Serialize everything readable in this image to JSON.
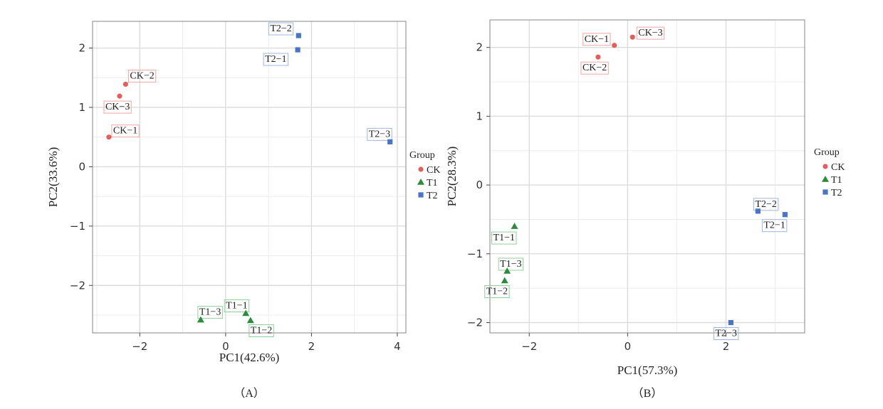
{
  "groups": [
    {
      "name": "CK",
      "color": "#e06060",
      "shape": "circle",
      "label_border": "#f0a6a6"
    },
    {
      "name": "T1",
      "color": "#2e8b3e",
      "shape": "triangle",
      "label_border": "#8fd09a"
    },
    {
      "name": "T2",
      "color": "#4a74c4",
      "shape": "square",
      "label_border": "#9fb6e2"
    }
  ],
  "chart_data": [
    {
      "type": "scatter",
      "panel_label": "（A）",
      "xlabel": "PC1(42.6%)",
      "ylabel": "PC2(33.6%)",
      "xlim": [
        -3.1,
        4.2
      ],
      "ylim": [
        -2.8,
        2.45
      ],
      "xticks": [
        -2,
        0,
        2,
        4
      ],
      "yticks": [
        -2,
        -1,
        0,
        1,
        2
      ],
      "grid": true,
      "legend": {
        "title": "Group",
        "position": "right",
        "entries": [
          "CK",
          "T1",
          "T2"
        ]
      },
      "points": [
        {
          "label": "CK-1",
          "group": "CK",
          "x": -2.72,
          "y": 0.5
        },
        {
          "label": "CK-2",
          "group": "CK",
          "x": -2.33,
          "y": 1.39
        },
        {
          "label": "CK-3",
          "group": "CK",
          "x": -2.47,
          "y": 1.19
        },
        {
          "label": "T1-1",
          "group": "T1",
          "x": 0.47,
          "y": -2.47
        },
        {
          "label": "T1-2",
          "group": "T1",
          "x": 0.58,
          "y": -2.59
        },
        {
          "label": "T1-3",
          "group": "T1",
          "x": -0.58,
          "y": -2.58
        },
        {
          "label": "T2-1",
          "group": "T2",
          "x": 1.68,
          "y": 1.97
        },
        {
          "label": "T2-2",
          "group": "T2",
          "x": 1.7,
          "y": 2.21
        },
        {
          "label": "T2-3",
          "group": "T2",
          "x": 3.83,
          "y": 0.42
        }
      ]
    },
    {
      "type": "scatter",
      "panel_label": "（B）",
      "xlabel": "PC1(57.3%)",
      "ylabel": "PC2(28.3%)",
      "xlim": [
        -2.8,
        3.6
      ],
      "ylim": [
        -2.15,
        2.4
      ],
      "xticks": [
        -2,
        0,
        2
      ],
      "yticks": [
        -2,
        -1,
        0,
        1,
        2
      ],
      "grid": true,
      "legend": {
        "title": "Group",
        "position": "right",
        "entries": [
          "CK",
          "T1",
          "T2"
        ]
      },
      "points": [
        {
          "label": "CK-1",
          "group": "CK",
          "x": -0.27,
          "y": 2.03
        },
        {
          "label": "CK-2",
          "group": "CK",
          "x": -0.6,
          "y": 1.86
        },
        {
          "label": "CK-3",
          "group": "CK",
          "x": 0.1,
          "y": 2.15
        },
        {
          "label": "T1-1",
          "group": "T1",
          "x": -2.3,
          "y": -0.6
        },
        {
          "label": "T1-2",
          "group": "T1",
          "x": -2.5,
          "y": -1.39
        },
        {
          "label": "T1-3",
          "group": "T1",
          "x": -2.45,
          "y": -1.25
        },
        {
          "label": "T2-1",
          "group": "T2",
          "x": 3.2,
          "y": -0.43
        },
        {
          "label": "T2-2",
          "group": "T2",
          "x": 2.65,
          "y": -0.38
        },
        {
          "label": "T2-3",
          "group": "T2",
          "x": 2.1,
          "y": -2.0
        }
      ]
    }
  ]
}
